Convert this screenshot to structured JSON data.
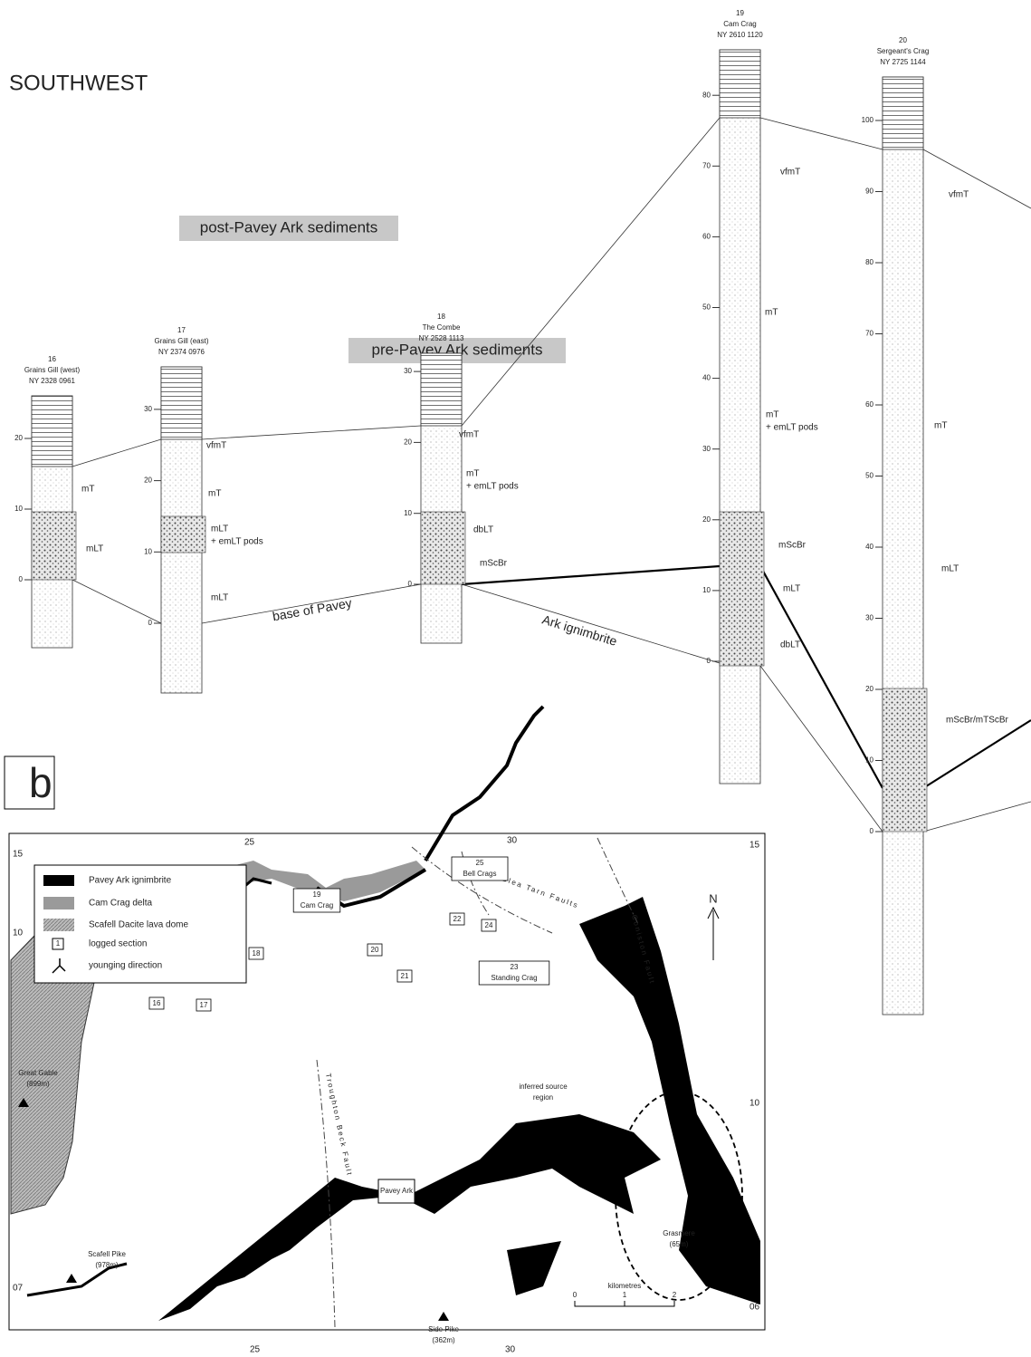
{
  "header": {
    "title": "SOUTHWEST"
  },
  "labels": {
    "post": "post-Pavey Ark sediments",
    "pre": "pre-Pavey Ark sediments",
    "base_upper": "base of Pavey",
    "base_lower": "Ark ignimbrite"
  },
  "sections": [
    {
      "number": "16",
      "name": "Grains Gill (west)",
      "grid_ref": "NY 2328 0961",
      "ticks": [
        0,
        10,
        20
      ],
      "units": [
        "mT",
        "mLT"
      ]
    },
    {
      "number": "17",
      "name": "Grains Gill (east)",
      "grid_ref": "NY 2374 0976",
      "ticks": [
        0,
        10,
        20,
        30
      ],
      "units": [
        "vfmT",
        "mT",
        "mLT",
        "+ emLT pods",
        "mLT"
      ]
    },
    {
      "number": "18",
      "name": "The Combe",
      "grid_ref": "NY 2528 1113",
      "ticks": [
        0,
        10,
        20,
        30
      ],
      "units": [
        "vfmT",
        "mT",
        "+ emLT pods",
        "dbLT",
        "mScBr"
      ]
    },
    {
      "number": "19",
      "name": "Cam Crag",
      "grid_ref": "NY 2610 1120",
      "ticks": [
        0,
        10,
        20,
        30,
        40,
        50,
        60,
        70,
        80
      ],
      "units": [
        "vfmT",
        "mT",
        "mT",
        "+ emLT pods",
        "mScBr",
        "mLT",
        "dbLT"
      ]
    },
    {
      "number": "20",
      "name": "Sergeant's Crag",
      "grid_ref": "NY 2725 1144",
      "ticks": [
        0,
        10,
        20,
        30,
        40,
        50,
        60,
        70,
        80,
        90,
        100
      ],
      "units": [
        "vfmT",
        "mT",
        "mLT",
        "mScBr/mTScBr"
      ]
    }
  ],
  "panel_b": "b",
  "map": {
    "legend": [
      "Pavey Ark ignimbrite",
      "Cam Crag delta",
      "Scafell Dacite lava dome",
      "logged section",
      "younging direction"
    ],
    "legend_section_symbol": "1",
    "grid": {
      "top_left": "15",
      "top_25": "25",
      "top_30": "30",
      "top_right": "15",
      "left_10": "10",
      "right_10": "10",
      "left_07": "07",
      "right_06": "06",
      "bottom_25": "25",
      "bottom_30": "30"
    },
    "north": "N",
    "scale": {
      "title": "kilometres",
      "ticks": [
        "0",
        "1",
        "2"
      ]
    },
    "faults": [
      "Blea Tarn Faults",
      "Coniston Fault",
      "Troughton Beck Fault"
    ],
    "places": [
      "Great Gable",
      "(899m)",
      "Scafell Pike",
      "(978m)",
      "Side Pike",
      "(362m)",
      "Grasmere",
      "(65m)",
      "Pavey Ark",
      "inferred source",
      "region"
    ],
    "sections": [
      {
        "number": "25",
        "name": "Bell Crags"
      },
      {
        "number": "22"
      },
      {
        "number": "24"
      },
      {
        "number": "23",
        "name": "Standing Crag"
      },
      {
        "number": "21"
      },
      {
        "number": "19",
        "name": "Cam Crag"
      },
      {
        "number": "20"
      },
      {
        "number": "18"
      },
      {
        "number": "16"
      },
      {
        "number": "17"
      }
    ]
  }
}
